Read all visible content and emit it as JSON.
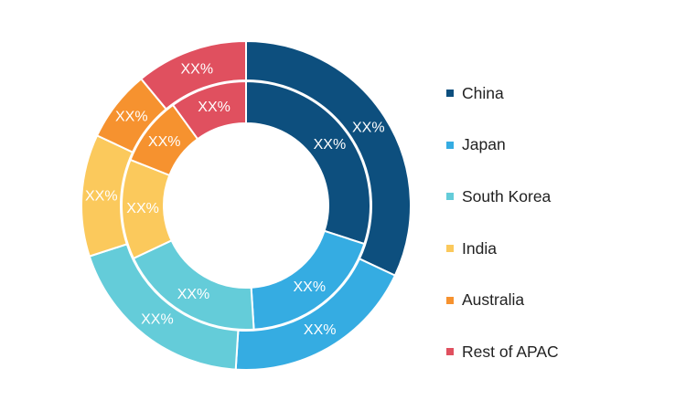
{
  "chart_data": {
    "type": "pie",
    "subtype": "double-donut",
    "categories": [
      "China",
      "Japan",
      "South Korea",
      "India",
      "Australia",
      "Rest of APAC"
    ],
    "colors": [
      "#0d4f7e",
      "#35ace2",
      "#64ccd9",
      "#fbc95c",
      "#f6922f",
      "#e0505f"
    ],
    "series": [
      {
        "values": [
          32,
          19,
          19,
          12,
          7,
          11
        ],
        "labels": [
          "XX%",
          "XX%",
          "XX%",
          "XX%",
          "XX%",
          "XX%"
        ]
      },
      {
        "values": [
          30,
          19,
          19,
          13,
          9,
          10
        ],
        "labels": [
          "XX%",
          "XX%",
          "XX%",
          "XX%",
          "XX%",
          "XX%"
        ]
      }
    ],
    "legend_position": "right",
    "title": ""
  }
}
